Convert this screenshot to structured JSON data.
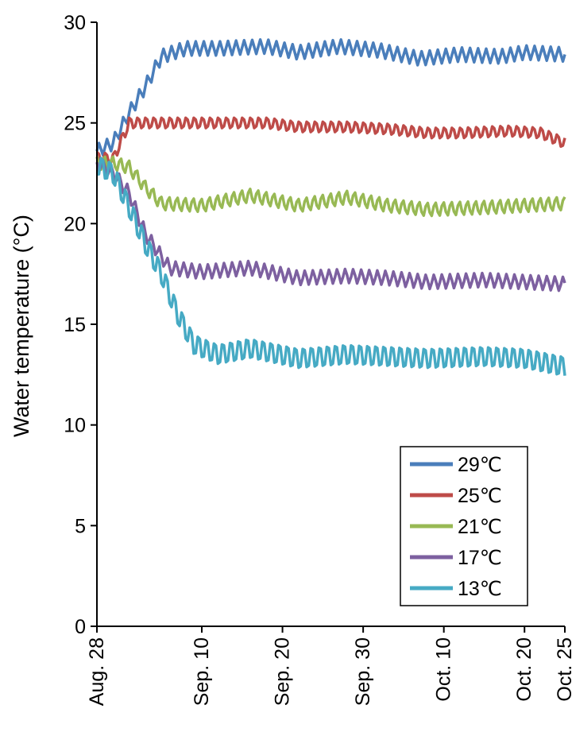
{
  "chart_data": {
    "type": "line",
    "title": "",
    "xlabel": "",
    "ylabel": "Water temperature (°C)",
    "ylim": [
      0,
      30
    ],
    "yticks": [
      0,
      5,
      10,
      15,
      20,
      25,
      30
    ],
    "xlim": [
      "2000-08-28",
      "2000-10-25"
    ],
    "xticks": [
      {
        "date": "2000-08-28",
        "label": "Aug. 28"
      },
      {
        "date": "2000-09-10",
        "label": "Sep. 10"
      },
      {
        "date": "2000-09-20",
        "label": "Sep. 20"
      },
      {
        "date": "2000-09-30",
        "label": "Sep. 30"
      },
      {
        "date": "2000-10-10",
        "label": "Oct. 10"
      },
      {
        "date": "2000-10-20",
        "label": "Oct. 20"
      },
      {
        "date": "2000-10-25",
        "label": "Oct. 25"
      }
    ],
    "grid": false,
    "legend_position": "bottom-right",
    "daily_fluctuation": true,
    "series": [
      {
        "name": "29℃",
        "color": "#4a7ebb",
        "amplitude": 0.35,
        "points": [
          [
            "2000-08-28",
            23.6
          ],
          [
            "2000-08-30",
            24.0
          ],
          [
            "2000-09-01",
            25.5
          ],
          [
            "2000-09-03",
            26.8
          ],
          [
            "2000-09-05",
            28.3
          ],
          [
            "2000-09-08",
            28.7
          ],
          [
            "2000-09-12",
            28.7
          ],
          [
            "2000-09-18",
            28.8
          ],
          [
            "2000-09-22",
            28.5
          ],
          [
            "2000-09-27",
            28.8
          ],
          [
            "2000-10-02",
            28.6
          ],
          [
            "2000-10-07",
            28.2
          ],
          [
            "2000-10-12",
            28.4
          ],
          [
            "2000-10-17",
            28.3
          ],
          [
            "2000-10-20",
            28.5
          ],
          [
            "2000-10-25",
            28.4
          ]
        ]
      },
      {
        "name": "25℃",
        "color": "#be4b48",
        "amplitude": 0.3,
        "points": [
          [
            "2000-08-28",
            23.3
          ],
          [
            "2000-08-30",
            23.2
          ],
          [
            "2000-09-01",
            25.0
          ],
          [
            "2000-09-05",
            25.0
          ],
          [
            "2000-09-12",
            25.0
          ],
          [
            "2000-09-18",
            25.0
          ],
          [
            "2000-09-22",
            24.8
          ],
          [
            "2000-09-28",
            24.8
          ],
          [
            "2000-10-03",
            24.7
          ],
          [
            "2000-10-08",
            24.5
          ],
          [
            "2000-10-12",
            24.5
          ],
          [
            "2000-10-18",
            24.6
          ],
          [
            "2000-10-22",
            24.5
          ],
          [
            "2000-10-25",
            24.0
          ]
        ]
      },
      {
        "name": "21℃",
        "color": "#98b954",
        "amplitude": 0.35,
        "points": [
          [
            "2000-08-28",
            23.0
          ],
          [
            "2000-08-30",
            23.0
          ],
          [
            "2000-09-01",
            22.8
          ],
          [
            "2000-09-03",
            21.8
          ],
          [
            "2000-09-05",
            21.0
          ],
          [
            "2000-09-10",
            20.9
          ],
          [
            "2000-09-16",
            21.4
          ],
          [
            "2000-09-22",
            20.9
          ],
          [
            "2000-09-28",
            21.3
          ],
          [
            "2000-10-03",
            20.9
          ],
          [
            "2000-10-08",
            20.7
          ],
          [
            "2000-10-15",
            20.8
          ],
          [
            "2000-10-20",
            20.9
          ],
          [
            "2000-10-25",
            21.0
          ]
        ]
      },
      {
        "name": "17℃",
        "color": "#7d60a0",
        "amplitude": 0.35,
        "points": [
          [
            "2000-08-28",
            23.0
          ],
          [
            "2000-08-30",
            22.5
          ],
          [
            "2000-09-01",
            21.5
          ],
          [
            "2000-09-03",
            19.5
          ],
          [
            "2000-09-06",
            17.8
          ],
          [
            "2000-09-10",
            17.6
          ],
          [
            "2000-09-16",
            17.8
          ],
          [
            "2000-09-22",
            17.3
          ],
          [
            "2000-09-28",
            17.4
          ],
          [
            "2000-10-03",
            17.3
          ],
          [
            "2000-10-08",
            17.1
          ],
          [
            "2000-10-15",
            17.2
          ],
          [
            "2000-10-20",
            17.1
          ],
          [
            "2000-10-25",
            17.0
          ]
        ]
      },
      {
        "name": "13℃",
        "color": "#46aac4",
        "amplitude": 0.6,
        "points": [
          [
            "2000-08-28",
            22.9
          ],
          [
            "2000-08-30",
            22.5
          ],
          [
            "2000-09-01",
            20.8
          ],
          [
            "2000-09-03",
            19.0
          ],
          [
            "2000-09-05",
            17.5
          ],
          [
            "2000-09-07",
            15.5
          ],
          [
            "2000-09-09",
            14.0
          ],
          [
            "2000-09-12",
            13.5
          ],
          [
            "2000-09-16",
            13.8
          ],
          [
            "2000-09-22",
            13.3
          ],
          [
            "2000-09-28",
            13.5
          ],
          [
            "2000-10-03",
            13.4
          ],
          [
            "2000-10-08",
            13.3
          ],
          [
            "2000-10-15",
            13.4
          ],
          [
            "2000-10-20",
            13.3
          ],
          [
            "2000-10-25",
            12.9
          ]
        ]
      }
    ]
  }
}
